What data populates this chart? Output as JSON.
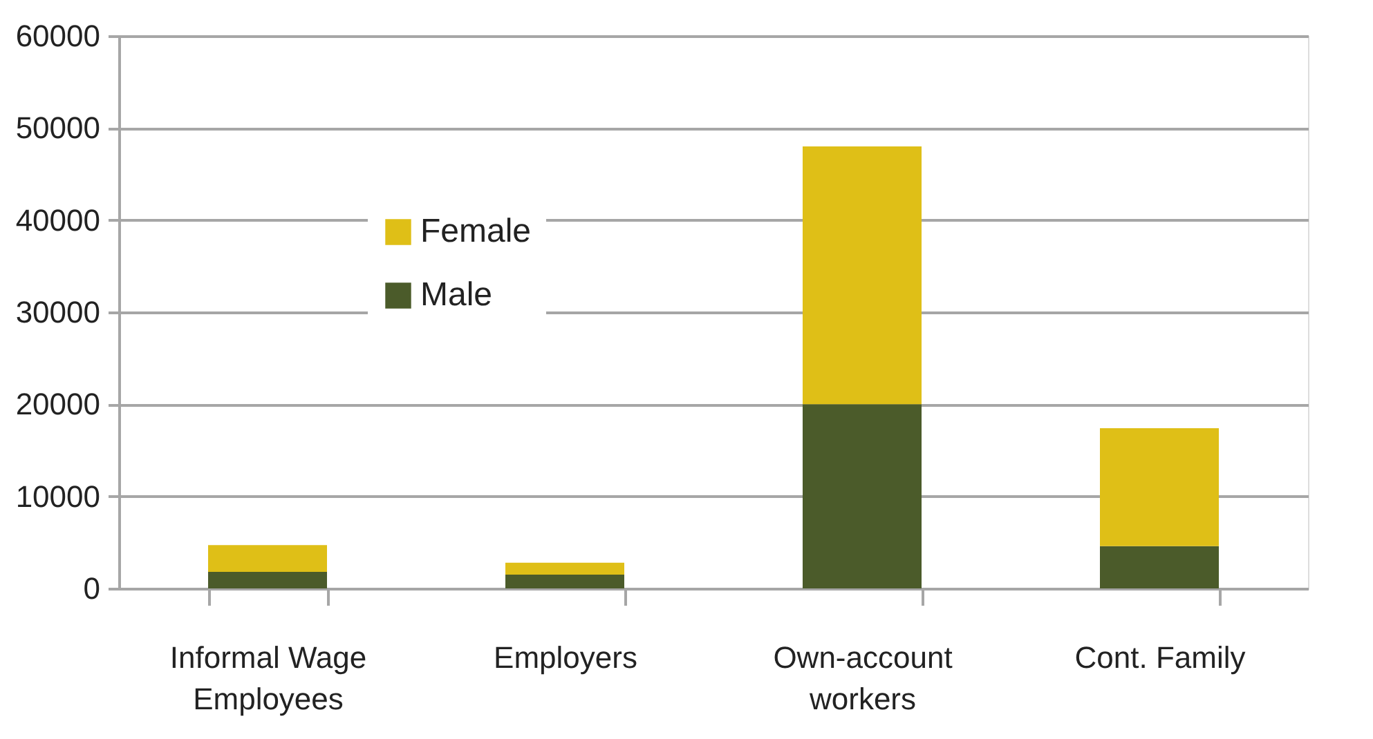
{
  "chart_data": {
    "type": "bar",
    "stacked": true,
    "categories": [
      "Informal Wage Employees",
      "Employers",
      "Own-account workers",
      "Cont. Family"
    ],
    "series": [
      {
        "name": "Male",
        "color": "#4b5b2a",
        "values": [
          1800,
          1500,
          20000,
          4600
        ]
      },
      {
        "name": "Female",
        "color": "#dfbf17",
        "values": [
          2900,
          1300,
          28000,
          12800
        ]
      }
    ],
    "ylim": [
      0,
      60000
    ],
    "yticks": [
      0,
      10000,
      20000,
      30000,
      40000,
      50000,
      60000
    ],
    "grid": "y",
    "legend": "left"
  }
}
